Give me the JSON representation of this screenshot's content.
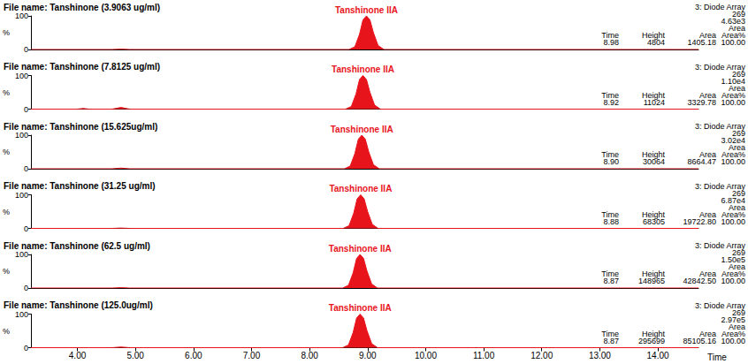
{
  "chart_data": [
    {
      "type": "area",
      "title": "File name: Tanshinone (3.9063 ug/ml)",
      "peak_label": "Tanshinone IIA",
      "detector": "3: Diode Array",
      "wavelength": 269,
      "scale_max": {
        "value": 4630,
        "label": "4.63e3"
      },
      "display": "Area",
      "peak_table": {
        "columns": [
          "Time",
          "Height",
          "Area",
          "Area%"
        ],
        "rows": [
          [
            8.98,
            4804,
            1405.18,
            {
              "value": 100,
              "label": "100.00"
            }
          ]
        ]
      },
      "x": [
        3.2,
        4.6,
        4.75,
        4.9,
        8.68,
        8.78,
        8.86,
        8.92,
        8.98,
        9.04,
        9.1,
        9.18,
        9.28,
        14.7
      ],
      "values": [
        0,
        0,
        1,
        0,
        0,
        8,
        45,
        88,
        100,
        88,
        50,
        12,
        0,
        0
      ],
      "color": "#e8141c",
      "y_label": "%",
      "xlim": [
        3.2,
        14.7
      ],
      "ylim": [
        0,
        100
      ],
      "yticks": [
        0,
        100
      ],
      "grid": false,
      "tick_labels": "y"
    },
    {
      "type": "area",
      "title": "File name: Tanshinone (7.8125 ug/ml)",
      "peak_label": "Tanshinone IIA",
      "detector": "3: Diode Array",
      "wavelength": 269,
      "scale_max": {
        "value": 11000,
        "label": "1.10e4"
      },
      "display": "Area",
      "peak_table": {
        "columns": [
          "Time",
          "Height",
          "Area",
          "Area%"
        ],
        "rows": [
          [
            8.92,
            11024,
            3329.78,
            {
              "value": 100,
              "label": "100.00"
            }
          ]
        ]
      },
      "x": [
        3.2,
        4.0,
        4.1,
        4.2,
        4.6,
        4.75,
        4.9,
        8.62,
        8.72,
        8.8,
        8.86,
        8.92,
        8.98,
        9.04,
        9.12,
        9.22,
        14.7
      ],
      "values": [
        0,
        0,
        2,
        0,
        0,
        5,
        0,
        0,
        8,
        45,
        88,
        100,
        88,
        50,
        12,
        0,
        0
      ],
      "color": "#e8141c",
      "y_label": "%",
      "xlim": [
        3.2,
        14.7
      ],
      "ylim": [
        0,
        100
      ],
      "yticks": [
        0,
        100
      ],
      "grid": false,
      "tick_labels": "y"
    },
    {
      "type": "area",
      "title": "File name: Tanshinone (15.625ug/ml)",
      "peak_label": "Tanshinone IIA",
      "detector": "3: Diode Array",
      "wavelength": 269,
      "scale_max": {
        "value": 30200,
        "label": "3.02e4"
      },
      "display": "Area",
      "peak_table": {
        "columns": [
          "Time",
          "Height",
          "Area",
          "Area%"
        ],
        "rows": [
          [
            {
              "value": 8.9,
              "label": "8.90"
            },
            30064,
            8664.47,
            {
              "value": 100,
              "label": "100.00"
            }
          ]
        ]
      },
      "x": [
        3.2,
        4.6,
        4.75,
        4.9,
        8.6,
        8.7,
        8.78,
        8.84,
        8.9,
        8.96,
        9.02,
        9.1,
        9.2,
        14.7
      ],
      "values": [
        0,
        0,
        2,
        0,
        0,
        8,
        45,
        88,
        100,
        88,
        50,
        12,
        0,
        0
      ],
      "color": "#e8141c",
      "y_label": "%",
      "xlim": [
        3.2,
        14.7
      ],
      "ylim": [
        0,
        100
      ],
      "yticks": [
        0,
        100
      ],
      "grid": false,
      "tick_labels": "y"
    },
    {
      "type": "area",
      "title": "File name: Tanshinone (31.25 ug/ml)",
      "peak_label": "Tanshinone IIA",
      "detector": "3: Diode Array",
      "wavelength": 269,
      "scale_max": {
        "value": 68700,
        "label": "6.87e4"
      },
      "display": "Area",
      "peak_table": {
        "columns": [
          "Time",
          "Height",
          "Area",
          "Area%"
        ],
        "rows": [
          [
            8.88,
            68305,
            {
              "value": 19722.8,
              "label": "19722.80"
            },
            {
              "value": 100,
              "label": "100.00"
            }
          ]
        ]
      },
      "x": [
        3.2,
        4.6,
        4.75,
        4.9,
        8.58,
        8.68,
        8.76,
        8.82,
        8.88,
        8.94,
        9.0,
        9.08,
        9.18,
        14.7
      ],
      "values": [
        0,
        0,
        1,
        0,
        0,
        8,
        45,
        88,
        100,
        88,
        50,
        12,
        0,
        0
      ],
      "color": "#e8141c",
      "y_label": "%",
      "xlim": [
        3.2,
        14.7
      ],
      "ylim": [
        0,
        100
      ],
      "yticks": [
        0,
        100
      ],
      "grid": false,
      "tick_labels": "y"
    },
    {
      "type": "area",
      "title": "File name: Tanshinone (62.5 ug/ml)",
      "peak_label": "Tanshinone IIA",
      "detector": "3: Diode Array",
      "wavelength": 269,
      "scale_max": {
        "value": 150000,
        "label": "1.50e5"
      },
      "display": "Area",
      "peak_table": {
        "columns": [
          "Time",
          "Height",
          "Area",
          "Area%"
        ],
        "rows": [
          [
            8.87,
            148965,
            {
              "value": 42842.5,
              "label": "42842.50"
            },
            {
              "value": 100,
              "label": "100.00"
            }
          ]
        ]
      },
      "x": [
        3.2,
        4.6,
        4.75,
        4.9,
        8.57,
        8.67,
        8.75,
        8.81,
        8.87,
        8.93,
        8.99,
        9.07,
        9.17,
        14.7
      ],
      "values": [
        0,
        0,
        1,
        0,
        0,
        8,
        45,
        88,
        100,
        88,
        50,
        12,
        0,
        0
      ],
      "color": "#e8141c",
      "y_label": "%",
      "xlim": [
        3.2,
        14.7
      ],
      "ylim": [
        0,
        100
      ],
      "yticks": [
        0,
        100
      ],
      "grid": false,
      "tick_labels": "y"
    },
    {
      "type": "area",
      "title": "File name: Tanshinone (125.0ug/ml)",
      "peak_label": "Tanshinone IIA",
      "detector": "3: Diode Array",
      "wavelength": 269,
      "scale_max": {
        "value": 297000,
        "label": "2.97e5"
      },
      "display": "Area",
      "peak_table": {
        "columns": [
          "Time",
          "Height",
          "Area",
          "Area%"
        ],
        "rows": [
          [
            8.87,
            295699,
            85105.16,
            {
              "value": 100,
              "label": "100.00"
            }
          ]
        ]
      },
      "x": [
        3.2,
        4.6,
        4.75,
        4.9,
        8.57,
        8.67,
        8.75,
        8.81,
        8.87,
        8.93,
        8.99,
        9.07,
        9.17,
        14.7
      ],
      "values": [
        0,
        0,
        2,
        0,
        0,
        8,
        45,
        88,
        100,
        88,
        50,
        12,
        0,
        0
      ],
      "color": "#e8141c",
      "x_label": "Time",
      "y_label": "%",
      "xlim": [
        3.2,
        14.7
      ],
      "ylim": [
        0,
        100
      ],
      "xticks": [
        {
          "value": 4,
          "label": "4.00"
        },
        {
          "value": 5,
          "label": "5.00"
        },
        {
          "value": 6,
          "label": "6.00"
        },
        {
          "value": 7,
          "label": "7.00"
        },
        {
          "value": 8,
          "label": "8.00"
        },
        {
          "value": 9,
          "label": "9.00"
        },
        {
          "value": 10,
          "label": "10.00"
        },
        {
          "value": 11,
          "label": "11.00"
        },
        {
          "value": 12,
          "label": "12.00"
        },
        {
          "value": 13,
          "label": "13.00"
        },
        {
          "value": 14,
          "label": "14.00"
        }
      ],
      "yticks": [
        0,
        100
      ],
      "grid": false
    }
  ]
}
